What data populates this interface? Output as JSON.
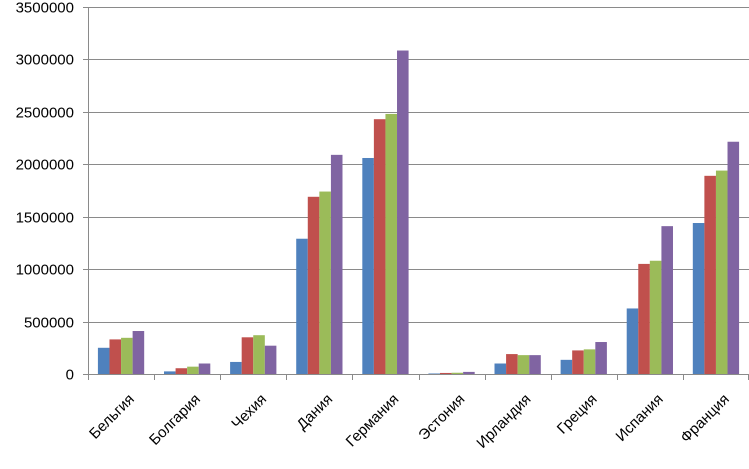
{
  "chart_data": {
    "type": "bar",
    "title": "",
    "xlabel": "",
    "ylabel": "",
    "categories": [
      "Бельгия",
      "Болгария",
      "Чехия",
      "Дания",
      "Германия",
      "Эстония",
      "Ирландия",
      "Греция",
      "Испания",
      "Франция"
    ],
    "ylim": [
      0,
      3500000
    ],
    "yticks": [
      0,
      500000,
      1000000,
      1500000,
      2000000,
      2500000,
      3000000,
      3500000
    ],
    "ytick_labels": [
      "0",
      "500000",
      "1000000",
      "1500000",
      "2000000",
      "2500000",
      "3000000",
      "3500000"
    ],
    "grid": "horizontal",
    "legend": "none",
    "series": [
      {
        "color": "#4F81BD",
        "values": [
          250000,
          25000,
          115000,
          1290000,
          2060000,
          5000,
          100000,
          135000,
          625000,
          1440000
        ]
      },
      {
        "color": "#C0504D",
        "values": [
          330000,
          55000,
          350000,
          1690000,
          2430000,
          10000,
          190000,
          225000,
          1050000,
          1890000
        ]
      },
      {
        "color": "#9BBB59",
        "values": [
          345000,
          70000,
          370000,
          1740000,
          2480000,
          12000,
          180000,
          235000,
          1080000,
          1940000
        ]
      },
      {
        "color": "#8064A2",
        "values": [
          410000,
          100000,
          270000,
          2090000,
          3085000,
          20000,
          180000,
          305000,
          1410000,
          2215000
        ]
      }
    ]
  }
}
